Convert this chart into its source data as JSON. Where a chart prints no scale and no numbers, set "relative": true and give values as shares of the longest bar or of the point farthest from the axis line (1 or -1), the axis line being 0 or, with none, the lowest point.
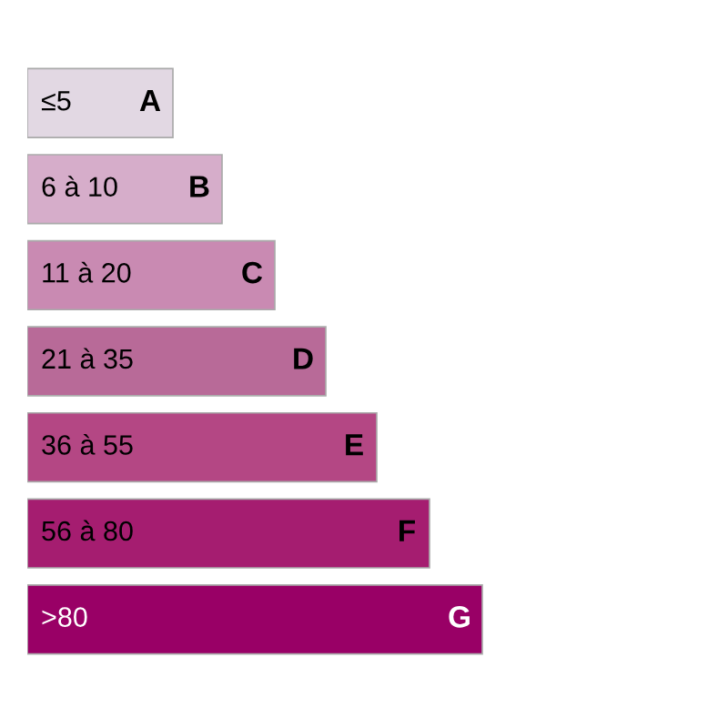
{
  "chart_data": {
    "type": "bar",
    "orientation": "horizontal",
    "relative": true,
    "categories": [
      "≤5",
      "6 à 10",
      "11 à 20",
      "21 à 35",
      "36 à 55",
      "56 à 80",
      ">80"
    ],
    "values": [
      0.32,
      0.428,
      0.544,
      0.656,
      0.768,
      0.884,
      1
    ],
    "colors": [
      "#e2d8e3",
      "#d6adca",
      "#c98ab2",
      "#b86a98",
      "#b44784",
      "#a51d70",
      "#990066"
    ],
    "annotations": [
      {
        "text": "A",
        "y": "≤5"
      },
      {
        "text": "B",
        "y": "6 à 10"
      },
      {
        "text": "C",
        "y": "11 à 20"
      },
      {
        "text": "D",
        "y": "21 à 35"
      },
      {
        "text": "E",
        "y": "36 à 55"
      },
      {
        "text": "F",
        "y": "56 à 80"
      },
      {
        "text": "G",
        "y": ">80"
      }
    ]
  }
}
